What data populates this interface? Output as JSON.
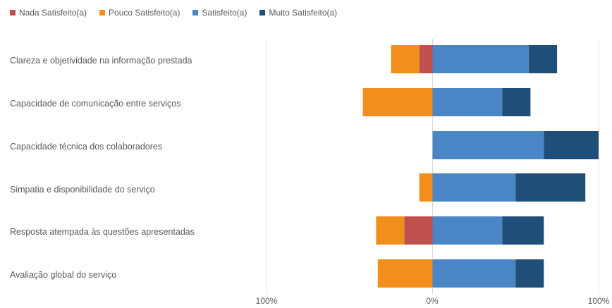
{
  "chart_data": {
    "type": "bar",
    "orientation": "horizontal",
    "stacking": "diverging",
    "title": "",
    "xlabel": "",
    "ylabel": "",
    "xlim": [
      -100,
      100
    ],
    "x_tick_labels": [
      "100%",
      "0%",
      "100%"
    ],
    "grid": false,
    "legend_position": "top-left",
    "categories": [
      "Clareza e objetividade na informação prestada",
      "Capacidade de comunicação entre serviços",
      "Capacidade técnica dos colaboradores",
      "Simpatia e disponibilidade do serviço",
      "Resposta atempada às questões apresentadas",
      "Avaliação global do serviço"
    ],
    "series": [
      {
        "name": "Nada Satisfeito(a)",
        "side": "negative",
        "color": "#C0504D",
        "values": [
          8,
          0,
          0,
          0,
          17,
          0
        ]
      },
      {
        "name": "Pouco Satisfeito(a)",
        "side": "negative",
        "color": "#F28E1C",
        "values": [
          17,
          42,
          0,
          8,
          17,
          33
        ]
      },
      {
        "name": "Satisfeito(a)",
        "side": "positive",
        "color": "#4A86C5",
        "values": [
          58,
          42,
          67,
          50,
          42,
          50
        ]
      },
      {
        "name": "Muito Satisfeito(a)",
        "side": "positive",
        "color": "#1F4E79",
        "values": [
          17,
          17,
          33,
          42,
          25,
          17
        ]
      }
    ]
  }
}
